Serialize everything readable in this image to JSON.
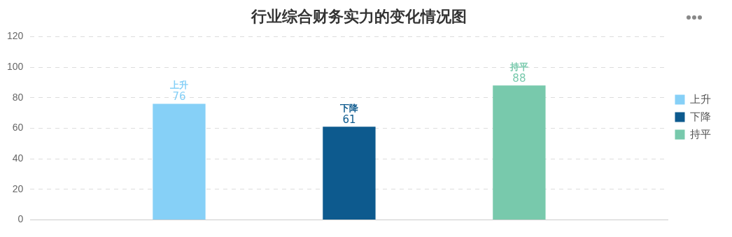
{
  "chart_data": {
    "type": "bar",
    "title": "行业综合财务实力的变化情况图",
    "categories": [
      null
    ],
    "series": [
      {
        "name": "上升",
        "color": "#86d0f7",
        "values": [
          76
        ]
      },
      {
        "name": "下降",
        "color": "#0d5a8e",
        "values": [
          61
        ]
      },
      {
        "name": "持平",
        "color": "#78c9ac",
        "values": [
          88
        ]
      }
    ],
    "ylim": [
      0,
      120
    ],
    "yticks": [
      0,
      20,
      40,
      60,
      80,
      100,
      120
    ],
    "grid": "y",
    "legend": "right",
    "data_labels": true
  }
}
